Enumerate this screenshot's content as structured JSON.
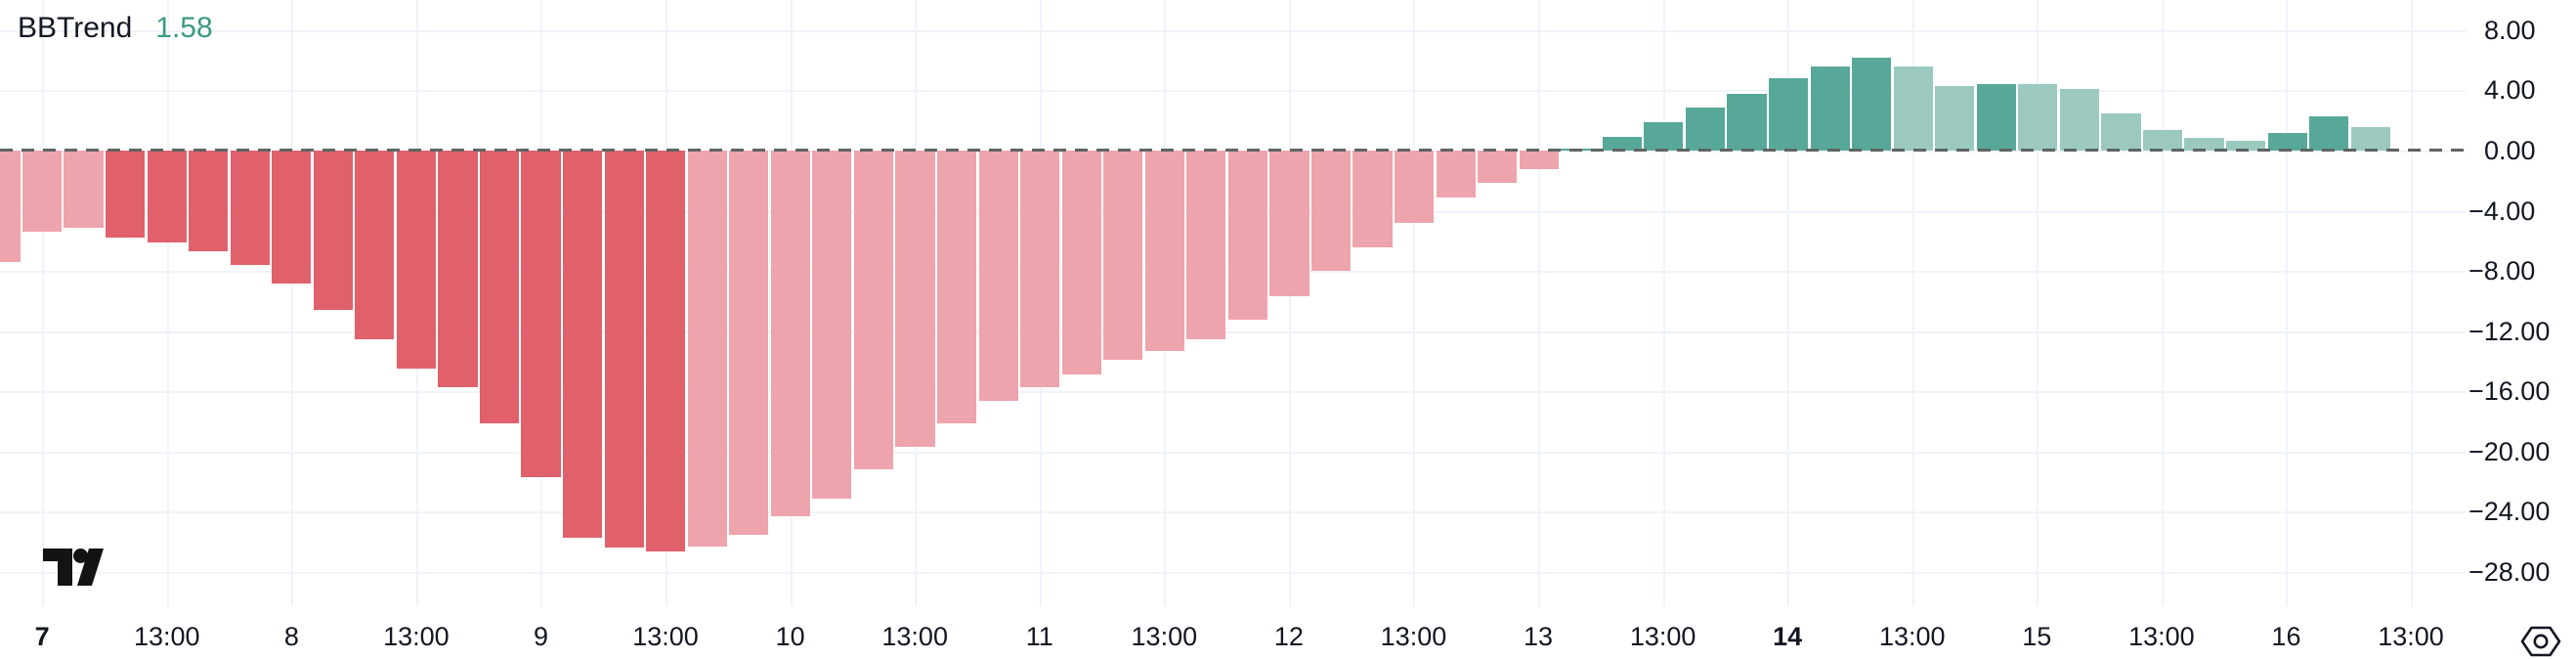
{
  "indicator": {
    "name": "BBTrend",
    "value": "1.58"
  },
  "colors": {
    "background": "#ffffff",
    "text": "#131722",
    "grid": "#f0f3fa",
    "zero_line": "#5f6562",
    "value_text": "#3b9a81",
    "bear_strong": "#e0616c",
    "bear_faded": "#eea4ac",
    "bull_strong": "#58a89a",
    "bull_faded": "#9bc9c0",
    "logo": "#131313",
    "icon_stroke": "#131722"
  },
  "chart_data": {
    "type": "bar",
    "title": "BBTrend",
    "last_value": 1.58,
    "interval_hint": "4h bars, days 7-16 on x-axis",
    "ylim": [
      -30.3,
      10.0
    ],
    "grid": true,
    "zero_line_style": "dashed",
    "y_tick_labels": [
      "8.00",
      "4.00",
      "0.00",
      "−4.00",
      "−8.00",
      "−12.00",
      "−16.00",
      "−20.00",
      "−24.00",
      "−28.00"
    ],
    "y_ticks": [
      8,
      4,
      0,
      -4,
      -8,
      -12,
      -16,
      -20,
      -24,
      -28
    ],
    "x_tick_labels": [
      {
        "text": "7",
        "bold": true
      },
      {
        "text": "13:00",
        "bold": false
      },
      {
        "text": "8",
        "bold": false
      },
      {
        "text": "13:00",
        "bold": false
      },
      {
        "text": "9",
        "bold": false
      },
      {
        "text": "13:00",
        "bold": false
      },
      {
        "text": "10",
        "bold": false
      },
      {
        "text": "13:00",
        "bold": false
      },
      {
        "text": "11",
        "bold": false
      },
      {
        "text": "13:00",
        "bold": false
      },
      {
        "text": "12",
        "bold": false
      },
      {
        "text": "13:00",
        "bold": false
      },
      {
        "text": "13",
        "bold": false
      },
      {
        "text": "13:00",
        "bold": false
      },
      {
        "text": "14",
        "bold": true
      },
      {
        "text": "13:00",
        "bold": false
      },
      {
        "text": "15",
        "bold": false
      },
      {
        "text": "13:00",
        "bold": false
      },
      {
        "text": "16",
        "bold": false
      },
      {
        "text": "13:00",
        "bold": false
      }
    ],
    "bars": [
      {
        "v": -7.4,
        "tone": "faded"
      },
      {
        "v": -5.4,
        "tone": "faded"
      },
      {
        "v": -5.1,
        "tone": "faded"
      },
      {
        "v": -5.8,
        "tone": "strong"
      },
      {
        "v": -6.1,
        "tone": "strong"
      },
      {
        "v": -6.7,
        "tone": "strong"
      },
      {
        "v": -7.6,
        "tone": "strong"
      },
      {
        "v": -8.8,
        "tone": "strong"
      },
      {
        "v": -10.6,
        "tone": "strong"
      },
      {
        "v": -12.5,
        "tone": "strong"
      },
      {
        "v": -14.5,
        "tone": "strong"
      },
      {
        "v": -15.7,
        "tone": "strong"
      },
      {
        "v": -18.1,
        "tone": "strong"
      },
      {
        "v": -21.7,
        "tone": "strong"
      },
      {
        "v": -25.7,
        "tone": "strong"
      },
      {
        "v": -26.4,
        "tone": "strong"
      },
      {
        "v": -26.6,
        "tone": "strong"
      },
      {
        "v": -26.3,
        "tone": "faded"
      },
      {
        "v": -25.5,
        "tone": "faded"
      },
      {
        "v": -24.3,
        "tone": "faded"
      },
      {
        "v": -23.1,
        "tone": "faded"
      },
      {
        "v": -21.2,
        "tone": "faded"
      },
      {
        "v": -19.7,
        "tone": "faded"
      },
      {
        "v": -18.1,
        "tone": "faded"
      },
      {
        "v": -16.6,
        "tone": "faded"
      },
      {
        "v": -15.7,
        "tone": "faded"
      },
      {
        "v": -14.9,
        "tone": "faded"
      },
      {
        "v": -13.9,
        "tone": "faded"
      },
      {
        "v": -13.3,
        "tone": "faded"
      },
      {
        "v": -12.5,
        "tone": "faded"
      },
      {
        "v": -11.2,
        "tone": "faded"
      },
      {
        "v": -9.7,
        "tone": "faded"
      },
      {
        "v": -8.0,
        "tone": "faded"
      },
      {
        "v": -6.4,
        "tone": "faded"
      },
      {
        "v": -4.8,
        "tone": "faded"
      },
      {
        "v": -3.1,
        "tone": "faded"
      },
      {
        "v": -2.1,
        "tone": "faded"
      },
      {
        "v": -1.2,
        "tone": "faded"
      },
      {
        "v": 0.15,
        "tone": "strong"
      },
      {
        "v": 0.9,
        "tone": "strong"
      },
      {
        "v": 1.9,
        "tone": "strong"
      },
      {
        "v": 2.9,
        "tone": "strong"
      },
      {
        "v": 3.8,
        "tone": "strong"
      },
      {
        "v": 4.8,
        "tone": "strong"
      },
      {
        "v": 5.6,
        "tone": "strong"
      },
      {
        "v": 6.2,
        "tone": "strong"
      },
      {
        "v": 5.6,
        "tone": "faded"
      },
      {
        "v": 4.3,
        "tone": "faded"
      },
      {
        "v": 4.45,
        "tone": "strong"
      },
      {
        "v": 4.4,
        "tone": "faded"
      },
      {
        "v": 4.1,
        "tone": "faded"
      },
      {
        "v": 2.5,
        "tone": "faded"
      },
      {
        "v": 1.4,
        "tone": "faded"
      },
      {
        "v": 0.85,
        "tone": "faded"
      },
      {
        "v": 0.65,
        "tone": "faded"
      },
      {
        "v": 1.2,
        "tone": "strong"
      },
      {
        "v": 2.3,
        "tone": "strong"
      },
      {
        "v": 1.58,
        "tone": "faded"
      }
    ]
  }
}
